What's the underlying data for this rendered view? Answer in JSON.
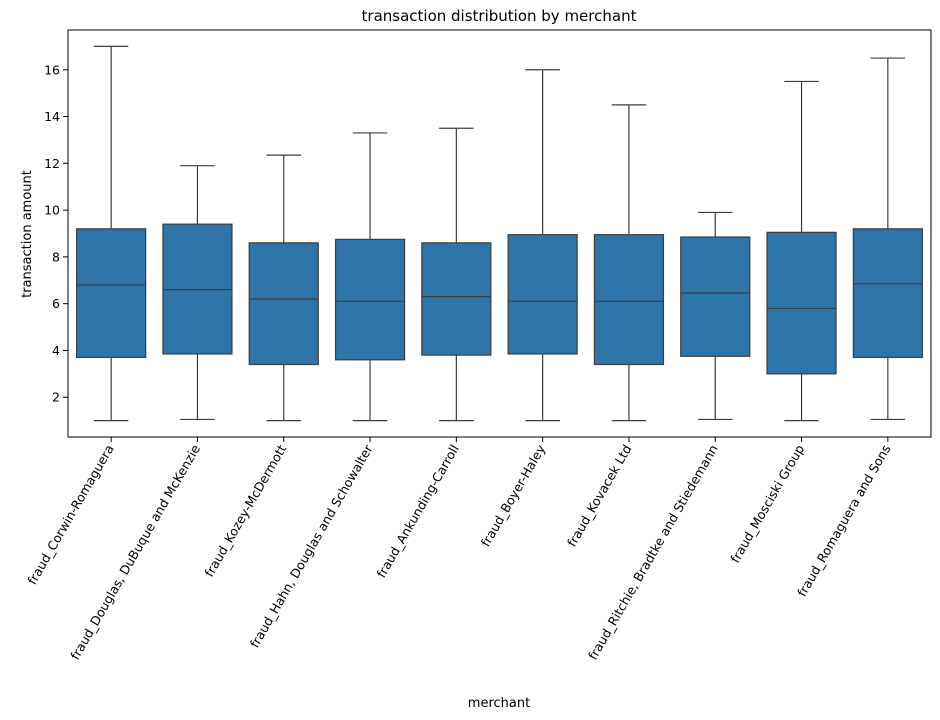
{
  "chart_data": {
    "type": "box",
    "title": "transaction distribution by merchant",
    "xlabel": "merchant",
    "ylabel": "transaction amount",
    "ylim": [
      0.3,
      17.7
    ],
    "yticks": [
      2,
      4,
      6,
      8,
      10,
      12,
      14,
      16
    ],
    "grid": false,
    "box_color": "#2f74a8",
    "line_color": "#3d3d3d",
    "categories": [
      "fraud_Corwin-Romaguera",
      "fraud_Douglas, DuBuque and McKenzie",
      "fraud_Kozey-McDermott",
      "fraud_Hahn, Douglas and Schowalter",
      "fraud_Ankunding-Carroll",
      "fraud_Boyer-Haley",
      "fraud_Kovacek Ltd",
      "fraud_Ritchie, Bradtke and Stiedemann",
      "fraud_Mosciski Group",
      "fraud_Romaguera and Sons"
    ],
    "series": [
      {
        "whisker_low": 1.0,
        "q1": 3.7,
        "median": 6.8,
        "q3": 9.2,
        "whisker_high": 17.0
      },
      {
        "whisker_low": 1.05,
        "q1": 3.85,
        "median": 6.6,
        "q3": 9.4,
        "whisker_high": 11.9
      },
      {
        "whisker_low": 1.0,
        "q1": 3.4,
        "median": 6.2,
        "q3": 8.6,
        "whisker_high": 12.35
      },
      {
        "whisker_low": 1.0,
        "q1": 3.6,
        "median": 6.1,
        "q3": 8.75,
        "whisker_high": 13.3
      },
      {
        "whisker_low": 1.0,
        "q1": 3.8,
        "median": 6.3,
        "q3": 8.6,
        "whisker_high": 13.5
      },
      {
        "whisker_low": 1.0,
        "q1": 3.85,
        "median": 6.1,
        "q3": 8.95,
        "whisker_high": 16.0
      },
      {
        "whisker_low": 1.0,
        "q1": 3.4,
        "median": 6.1,
        "q3": 8.95,
        "whisker_high": 14.5
      },
      {
        "whisker_low": 1.05,
        "q1": 3.75,
        "median": 6.45,
        "q3": 8.85,
        "whisker_high": 9.9
      },
      {
        "whisker_low": 1.0,
        "q1": 3.0,
        "median": 5.8,
        "q3": 9.05,
        "whisker_high": 15.5
      },
      {
        "whisker_low": 1.05,
        "q1": 3.7,
        "median": 6.85,
        "q3": 9.2,
        "whisker_high": 16.5
      }
    ]
  }
}
